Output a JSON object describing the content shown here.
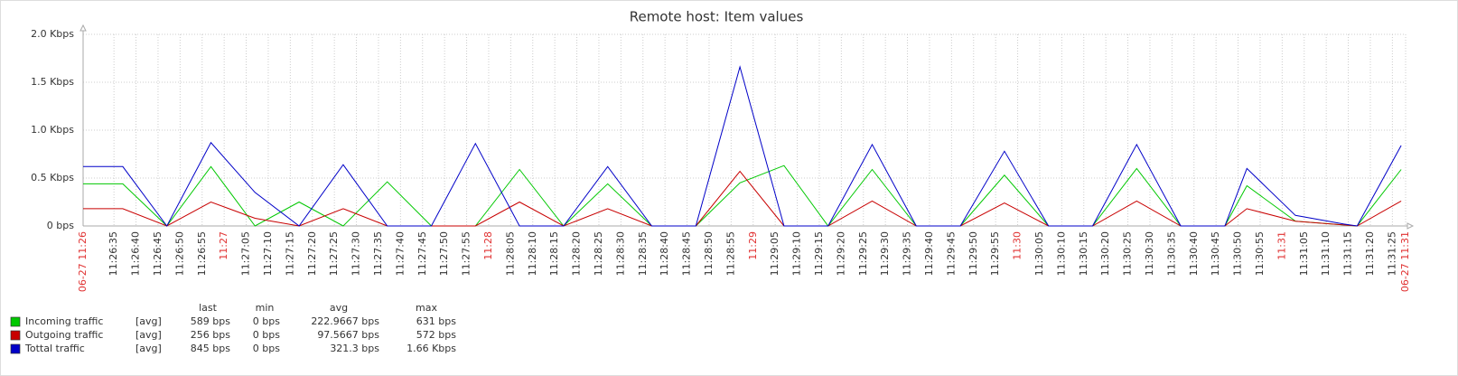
{
  "chart_data": {
    "type": "line",
    "title": "Remote host: Item values",
    "xlim": [
      "11:26:28",
      "11:31:28"
    ],
    "xticks": [
      {
        "value": "11:26:28",
        "label": "06-27 11:26"
      },
      "11:26:35",
      "11:26:40",
      "11:26:45",
      "11:26:50",
      "11:26:55",
      {
        "value": "11:27:00",
        "label": "11:27"
      },
      "11:27:05",
      "11:27:10",
      "11:27:15",
      "11:27:20",
      "11:27:25",
      "11:27:30",
      "11:27:35",
      "11:27:40",
      "11:27:45",
      "11:27:50",
      "11:27:55",
      {
        "value": "11:28:00",
        "label": "11:28"
      },
      "11:28:05",
      "11:28:10",
      "11:28:15",
      "11:28:20",
      "11:28:25",
      "11:28:30",
      "11:28:35",
      "11:28:40",
      "11:28:45",
      "11:28:50",
      "11:28:55",
      {
        "value": "11:29:00",
        "label": "11:29"
      },
      "11:29:05",
      "11:29:10",
      "11:29:15",
      "11:29:20",
      "11:29:25",
      "11:29:30",
      "11:29:35",
      "11:29:40",
      "11:29:45",
      "11:29:50",
      "11:29:55",
      {
        "value": "11:30:00",
        "label": "11:30"
      },
      "11:30:05",
      "11:30:10",
      "11:30:15",
      "11:30:20",
      "11:30:25",
      "11:30:30",
      "11:30:35",
      "11:30:40",
      "11:30:45",
      "11:30:50",
      "11:30:55",
      {
        "value": "11:31:00",
        "label": "11:31"
      },
      "11:31:05",
      "11:31:10",
      "11:31:15",
      "11:31:20",
      "11:31:25",
      {
        "value": "11:31:28",
        "label": "06-27 11:31"
      }
    ],
    "ylim": [
      0,
      2000
    ],
    "yticks": [
      {
        "value": 0,
        "label": "0 bps"
      },
      {
        "value": 500,
        "label": "0.5 Kbps"
      },
      {
        "value": 1000,
        "label": "1.0 Kbps"
      },
      {
        "value": 1500,
        "label": "1.5 Kbps"
      },
      {
        "value": 2000,
        "label": "2.0 Kbps"
      }
    ],
    "grid": true,
    "x": [
      "11:26:27",
      "11:26:37",
      "11:26:47",
      "11:26:57",
      "11:27:07",
      "11:27:17",
      "11:27:27",
      "11:27:37",
      "11:27:47",
      "11:27:57",
      "11:28:07",
      "11:28:17",
      "11:28:27",
      "11:28:37",
      "11:28:47",
      "11:28:57",
      "11:29:07",
      "11:29:17",
      "11:29:27",
      "11:29:37",
      "11:29:47",
      "11:29:57",
      "11:30:07",
      "11:30:17",
      "11:30:27",
      "11:30:37",
      "11:30:47",
      "11:30:52",
      "11:31:03",
      "11:31:14",
      "11:31:17",
      "11:31:27"
    ],
    "series": [
      {
        "name": "Incoming traffic",
        "color": "#00c800",
        "values": [
          440,
          440,
          0,
          620,
          0,
          250,
          0,
          460,
          0,
          0,
          590,
          0,
          440,
          0,
          0,
          450,
          630,
          0,
          590,
          0,
          0,
          530,
          0,
          0,
          600,
          0,
          0,
          420,
          50,
          10,
          0,
          590
        ]
      },
      {
        "name": "Outgoing traffic",
        "color": "#c80000",
        "values": [
          180,
          180,
          0,
          250,
          80,
          0,
          180,
          0,
          0,
          0,
          250,
          0,
          180,
          0,
          0,
          570,
          0,
          0,
          260,
          0,
          0,
          240,
          0,
          0,
          260,
          0,
          0,
          180,
          50,
          10,
          0,
          260
        ]
      },
      {
        "name": "Tottal traffic",
        "color": "#0000c8",
        "values": [
          620,
          620,
          0,
          870,
          350,
          0,
          640,
          0,
          0,
          860,
          0,
          0,
          620,
          0,
          0,
          1660,
          0,
          0,
          850,
          0,
          0,
          780,
          0,
          0,
          850,
          0,
          0,
          600,
          110,
          20,
          0,
          840
        ]
      }
    ],
    "legend_stats": {
      "columns": [
        "last",
        "min",
        "avg",
        "max"
      ],
      "rows": [
        [
          "[avg]",
          "589 bps",
          "0 bps",
          "222.9667 bps",
          "631 bps"
        ],
        [
          "[avg]",
          "256 bps",
          "0 bps",
          "97.5667 bps",
          "572 bps"
        ],
        [
          "[avg]",
          "845 bps",
          "0 bps",
          "321.3 bps",
          "1.66 Kbps"
        ]
      ]
    }
  }
}
